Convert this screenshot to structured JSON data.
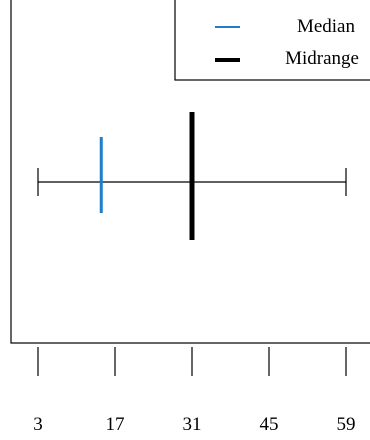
{
  "chart_data": {
    "type": "range-plot",
    "title": "",
    "xlabel": "",
    "ylabel": "",
    "xlim": [
      2,
      60
    ],
    "xticks": [
      3,
      17,
      31,
      45,
      59
    ],
    "range": {
      "min": 3,
      "max": 59
    },
    "series": [
      {
        "name": "Median",
        "value": 14.5,
        "color": "#1f7dc9"
      },
      {
        "name": "Midrange",
        "value": 31,
        "color": "#000000"
      }
    ],
    "legend_position": "top-right",
    "grid": false
  }
}
